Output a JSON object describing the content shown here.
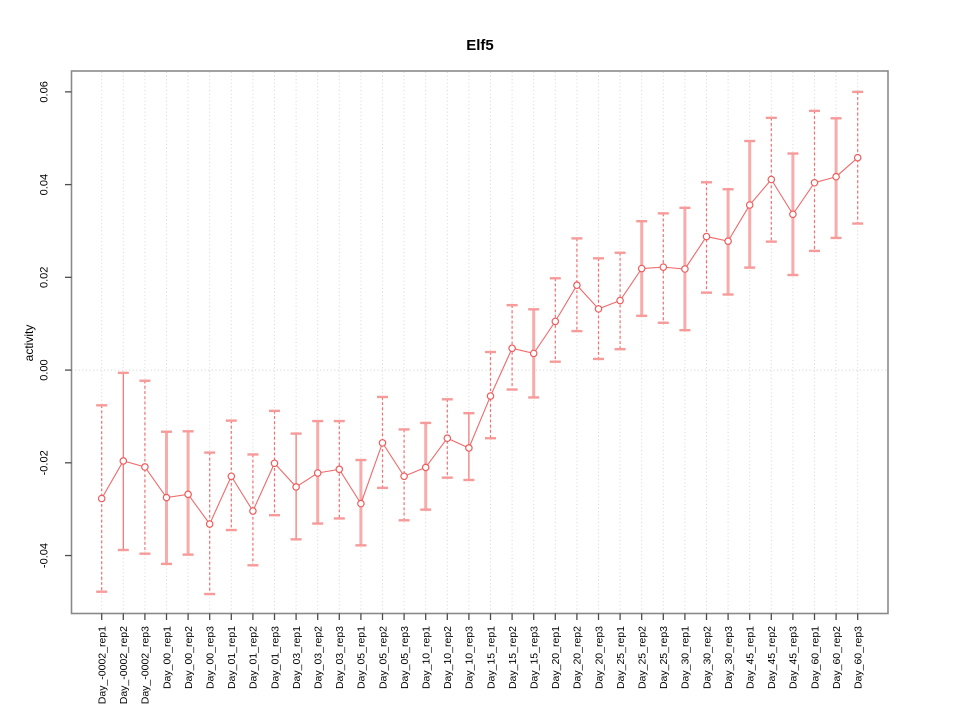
{
  "chart_data": {
    "type": "scatter",
    "title": "Elf5",
    "ylabel": "activity",
    "xlabel": "",
    "legend": "none",
    "grid": {
      "vertical_dotted_per_category": true,
      "horizontal_zero_line_dotted": true
    },
    "ylim": [
      -0.0525,
      0.0645
    ],
    "yticks": {
      "values": [
        0.06,
        0.04,
        0.02,
        0.0,
        -0.02,
        -0.04
      ],
      "labels": [
        "0.06",
        "0.04",
        "0.02",
        "0.00",
        "-0.02",
        "-0.04"
      ]
    },
    "categories": [
      "Day_-0002_rep1",
      "Day_-0002_rep2",
      "Day_-0002_rep3",
      "Day_00_rep1",
      "Day_00_rep2",
      "Day_00_rep3",
      "Day_01_rep1",
      "Day_01_rep2",
      "Day_01_rep3",
      "Day_03_rep1",
      "Day_03_rep2",
      "Day_03_rep3",
      "Day_05_rep1",
      "Day_05_rep2",
      "Day_05_rep3",
      "Day_10_rep1",
      "Day_10_rep2",
      "Day_10_rep3",
      "Day_15_rep1",
      "Day_15_rep2",
      "Day_15_rep3",
      "Day_20_rep1",
      "Day_20_rep2",
      "Day_20_rep3",
      "Day_25_rep1",
      "Day_25_rep2",
      "Day_25_rep3",
      "Day_30_rep1",
      "Day_30_rep2",
      "Day_30_rep3",
      "Day_45_rep1",
      "Day_45_rep2",
      "Day_45_rep3",
      "Day_60_rep1",
      "Day_60_rep2",
      "Day_60_rep3"
    ],
    "series": [
      {
        "name": "activity",
        "marker": "open-circle",
        "connected": true,
        "values": [
          -0.0277,
          -0.0196,
          -0.0209,
          -0.0275,
          -0.0268,
          -0.0332,
          -0.0229,
          -0.0304,
          -0.0201,
          -0.0252,
          -0.0222,
          -0.0214,
          -0.0288,
          -0.0157,
          -0.0229,
          -0.021,
          -0.0147,
          -0.0168,
          -0.0056,
          0.0047,
          0.0036,
          0.0105,
          0.0183,
          0.0132,
          0.015,
          0.0219,
          0.0222,
          0.0218,
          0.0288,
          0.0278,
          0.0356,
          0.0411,
          0.0336,
          0.0404,
          0.0417,
          0.0458
        ],
        "lower": [
          -0.0478,
          -0.0388,
          -0.0396,
          -0.0418,
          -0.0398,
          -0.0483,
          -0.0345,
          -0.0421,
          -0.0313,
          -0.0365,
          -0.0331,
          -0.032,
          -0.0378,
          -0.0254,
          -0.0324,
          -0.0301,
          -0.0232,
          -0.0237,
          -0.0147,
          -0.0042,
          -0.0059,
          0.0018,
          0.0084,
          0.0024,
          0.0045,
          0.0117,
          0.0102,
          0.0086,
          0.0167,
          0.0163,
          0.0221,
          0.0277,
          0.0205,
          0.0257,
          0.0285,
          0.0316
        ],
        "upper": [
          -0.0076,
          -0.0006,
          -0.0023,
          -0.0133,
          -0.0132,
          -0.0178,
          -0.0109,
          -0.0182,
          -0.0088,
          -0.0137,
          -0.011,
          -0.011,
          -0.0194,
          -0.0058,
          -0.0128,
          -0.0114,
          -0.0063,
          -0.0093,
          0.0039,
          0.014,
          0.0131,
          0.0198,
          0.0284,
          0.0241,
          0.0253,
          0.0321,
          0.0338,
          0.035,
          0.0405,
          0.039,
          0.0494,
          0.0544,
          0.0467,
          0.0559,
          0.0543,
          0.06
        ],
        "bar_styles": [
          "dashed",
          "solid",
          "dashed",
          "thick",
          "thick",
          "dashed",
          "dashed",
          "dashed",
          "dashed",
          "solid",
          "thick",
          "dashed",
          "thick",
          "dashed",
          "dashed",
          "thick",
          "dashed",
          "solid",
          "dashed",
          "dashed",
          "thick",
          "dashed",
          "dashed",
          "dashed",
          "dashed",
          "thick",
          "dashed",
          "thick",
          "dashed",
          "thick",
          "thick",
          "dashed",
          "thick",
          "dashed",
          "thick",
          "dashed"
        ]
      }
    ],
    "colors": {
      "point": "#ef5b5b",
      "connect_line": "#f06a6a",
      "bar_dashed": "#f37070",
      "bar_solid": "#f37070",
      "bar_thick": "#f8abab",
      "cap": "#f79a9a",
      "grid": "#d6d6d6",
      "zero_line": "#cfcfcf",
      "border": "#8a8a8a",
      "tick": "#4d4d4d",
      "text": "#000000"
    }
  }
}
